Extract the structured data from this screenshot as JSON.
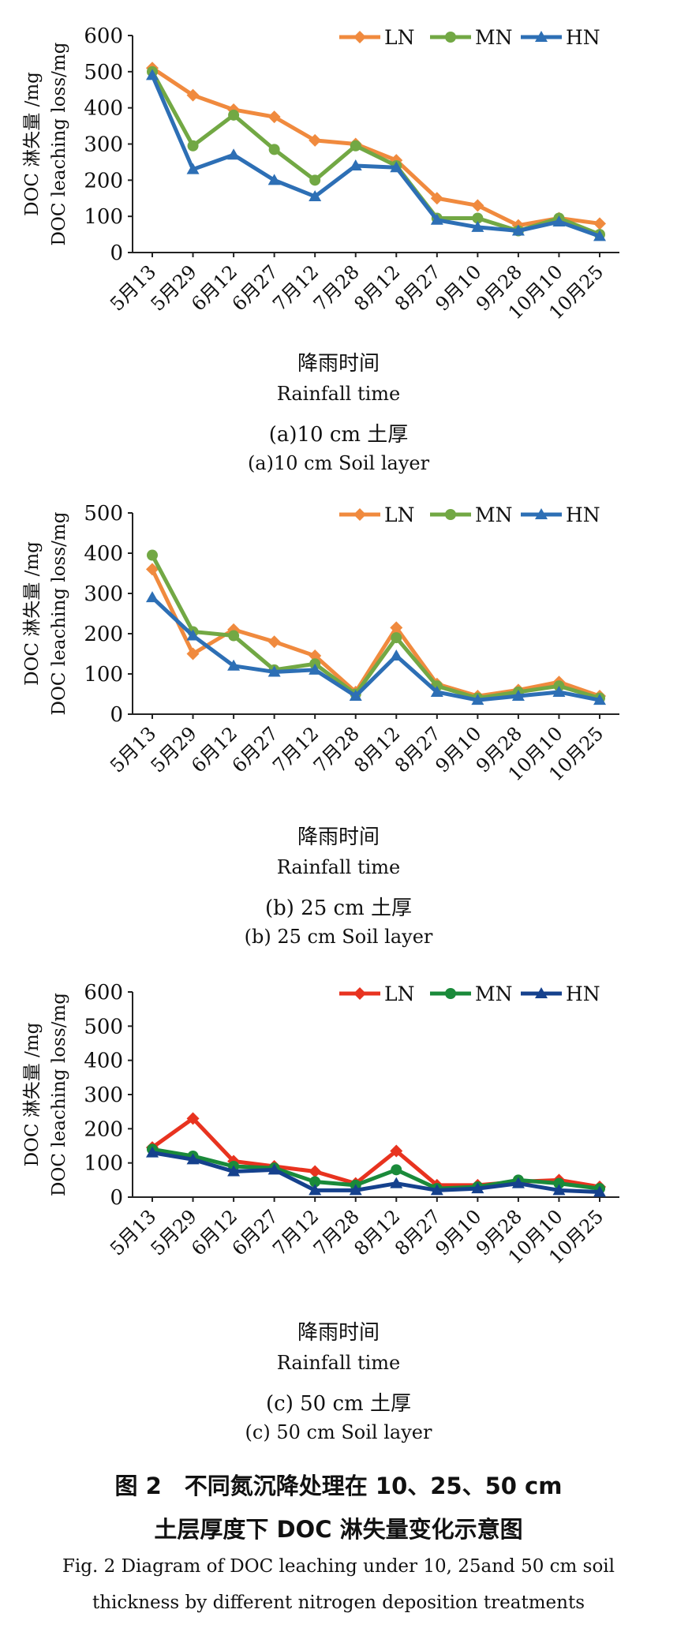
{
  "chart_data": [
    {
      "type": "line",
      "ylabel_cn": "DOC 淋失量 /mg",
      "ylabel_en": "DOC leaching loss/mg",
      "xlabel_cn": "降雨时间",
      "xlabel_en": "Rainfall time",
      "subtitle_cn": "(a)10 cm 土厚",
      "subtitle_en": "(a)10 cm Soil layer",
      "ylim": [
        0,
        600
      ],
      "yticks": [
        "0",
        "100",
        "200",
        "300",
        "400",
        "500",
        "600"
      ],
      "categories": [
        "5月13",
        "5月29",
        "6月12",
        "6月27",
        "7月12",
        "7月28",
        "8月12",
        "8月27",
        "9月10",
        "9月28",
        "10月10",
        "10月25"
      ],
      "legend_position": "top-right",
      "series": [
        {
          "name": "LN",
          "color": "#f08a3e",
          "marker": "diamond",
          "values": [
            510,
            435,
            395,
            375,
            310,
            300,
            255,
            150,
            130,
            75,
            95,
            80
          ]
        },
        {
          "name": "MN",
          "color": "#72a844",
          "marker": "circle",
          "values": [
            500,
            295,
            380,
            285,
            200,
            295,
            240,
            95,
            95,
            60,
            95,
            50
          ]
        },
        {
          "name": "HN",
          "color": "#2d6fb5",
          "marker": "triangle",
          "values": [
            490,
            230,
            270,
            200,
            155,
            240,
            235,
            90,
            70,
            60,
            85,
            45
          ]
        }
      ]
    },
    {
      "type": "line",
      "ylabel_cn": "DOC 淋失量 /mg",
      "ylabel_en": "DOC leaching loss/mg",
      "xlabel_cn": "降雨时间",
      "xlabel_en": "Rainfall time",
      "subtitle_cn": "(b) 25 cm 土厚",
      "subtitle_en": "(b) 25 cm Soil layer",
      "ylim": [
        0,
        500
      ],
      "yticks": [
        "0",
        "100",
        "200",
        "300",
        "400",
        "500"
      ],
      "categories": [
        "5月13",
        "5月29",
        "6月12",
        "6月27",
        "7月12",
        "7月28",
        "8月12",
        "8月27",
        "9月10",
        "9月28",
        "10月10",
        "10月25"
      ],
      "legend_position": "top-right",
      "series": [
        {
          "name": "LN",
          "color": "#f08a3e",
          "marker": "diamond",
          "values": [
            360,
            150,
            210,
            180,
            145,
            55,
            215,
            75,
            45,
            60,
            80,
            45
          ]
        },
        {
          "name": "MN",
          "color": "#72a844",
          "marker": "circle",
          "values": [
            395,
            205,
            195,
            110,
            125,
            50,
            190,
            70,
            40,
            55,
            70,
            40
          ]
        },
        {
          "name": "HN",
          "color": "#2d6fb5",
          "marker": "triangle",
          "values": [
            290,
            195,
            120,
            105,
            110,
            45,
            145,
            55,
            35,
            45,
            55,
            35
          ]
        }
      ]
    },
    {
      "type": "line",
      "ylabel_cn": "DOC 淋失量 /mg",
      "ylabel_en": "DOC leaching loss/mg",
      "xlabel_cn": "降雨时间",
      "xlabel_en": "Rainfall time",
      "subtitle_cn": "(c) 50 cm 土厚",
      "subtitle_en": "(c) 50 cm Soil layer",
      "ylim": [
        0,
        600
      ],
      "yticks": [
        "0",
        "100",
        "200",
        "300",
        "400",
        "500",
        "600"
      ],
      "categories": [
        "5月13",
        "5月29",
        "6月12",
        "6月27",
        "7月12",
        "7月28",
        "8月12",
        "8月27",
        "9月10",
        "9月28",
        "10月10",
        "10月25"
      ],
      "legend_position": "top-right",
      "series": [
        {
          "name": "LN",
          "color": "#e8331f",
          "marker": "diamond",
          "values": [
            145,
            230,
            105,
            90,
            75,
            40,
            135,
            35,
            35,
            45,
            50,
            30
          ]
        },
        {
          "name": "MN",
          "color": "#1a8a3a",
          "marker": "circle",
          "values": [
            140,
            120,
            90,
            85,
            45,
            35,
            80,
            25,
            30,
            50,
            40,
            25
          ]
        },
        {
          "name": "HN",
          "color": "#15418d",
          "marker": "triangle",
          "values": [
            130,
            110,
            75,
            80,
            20,
            20,
            40,
            20,
            25,
            40,
            20,
            15
          ]
        }
      ]
    }
  ],
  "figure": {
    "title_line1": "图 2　不同氮沉降处理在 10、25、50 cm",
    "title_line2": "土层厚度下 DOC 淋失量变化示意图",
    "caption_en_line1": "Fig. 2 Diagram of DOC leaching under 10, 25and 50 cm soil",
    "caption_en_line2": "thickness by different nitrogen deposition treatments"
  }
}
